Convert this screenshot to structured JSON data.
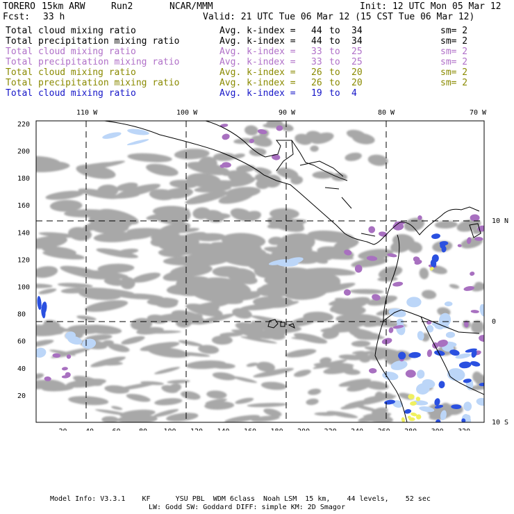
{
  "header": {
    "model": "TORERO",
    "resolution": "15km ARW",
    "run": "Run2",
    "org": "NCAR/MMM",
    "init": "Init: 12 UTC Mon 05 Mar 12",
    "fcst_label": "Fcst:",
    "fcst_value": "33 h",
    "valid": "Valid: 21 UTC Tue 06 Mar 12 (15 CST Tue 06 Mar 12)"
  },
  "legend": [
    {
      "name": "Total cloud mixing ratio",
      "avg": "Avg. k-index =",
      "from": "44",
      "to_word": "to",
      "to": "34",
      "sm": "sm= 2",
      "color": "#000000"
    },
    {
      "name": "Total precipitation mixing ratio",
      "avg": "Avg. k-index =",
      "from": "44",
      "to_word": "to",
      "to": "34",
      "sm": "sm= 2",
      "color": "#000000"
    },
    {
      "name": "Total cloud mixing ratio",
      "avg": "Avg. k-index =",
      "from": "33",
      "to_word": "to",
      "to": "25",
      "sm": "sm= 2",
      "color": "#b070c8"
    },
    {
      "name": "Total precipitation mixing ratio",
      "avg": "Avg. k-index =",
      "from": "33",
      "to_word": "to",
      "to": "25",
      "sm": "sm= 2",
      "color": "#b070c8"
    },
    {
      "name": "Total cloud mixing ratio",
      "avg": "Avg. k-index =",
      "from": "26",
      "to_word": "to",
      "to": "20",
      "sm": "sm= 2",
      "color": "#8a8a00"
    },
    {
      "name": "Total precipitation mixing ratio",
      "avg": "Avg. k-index =",
      "from": "26",
      "to_word": "to",
      "to": "20",
      "sm": "sm= 2",
      "color": "#8a8a00"
    },
    {
      "name": "Total cloud mixing ratio",
      "avg": "Avg. k-index =",
      "from": "19",
      "to_word": "to",
      "to": "4",
      "sm": "",
      "color": "#1515c8"
    }
  ],
  "map": {
    "lon_labels": [
      "110 W",
      "100 W",
      "90 W",
      "80 W",
      "70 W"
    ],
    "lat_labels": [
      "10 N",
      "0",
      "10 S"
    ],
    "y_ticks": [
      "220",
      "200",
      "180",
      "160",
      "140",
      "120",
      "100",
      "80",
      "60",
      "40",
      "20"
    ],
    "x_ticks": [
      "20",
      "40",
      "60",
      "80",
      "100",
      "120",
      "140",
      "160",
      "180",
      "200",
      "220",
      "240",
      "260",
      "280",
      "300",
      "320"
    ]
  },
  "footer": {
    "line1": "Model Info: V3.3.1    KF      YSU PBL  WDM 6class  Noah LSM  15 km,    44 levels,    52 sec",
    "line2": "LW: Godd SW: Goddard DIFF: simple KM: 2D Smagor"
  },
  "colors": {
    "cloud_gray": "#a8a8a8",
    "cloud_purple": "#a870c0",
    "precip_blue": "#2a50e0",
    "light_blue": "#bcd6f8",
    "yellow": "#f0f060"
  }
}
